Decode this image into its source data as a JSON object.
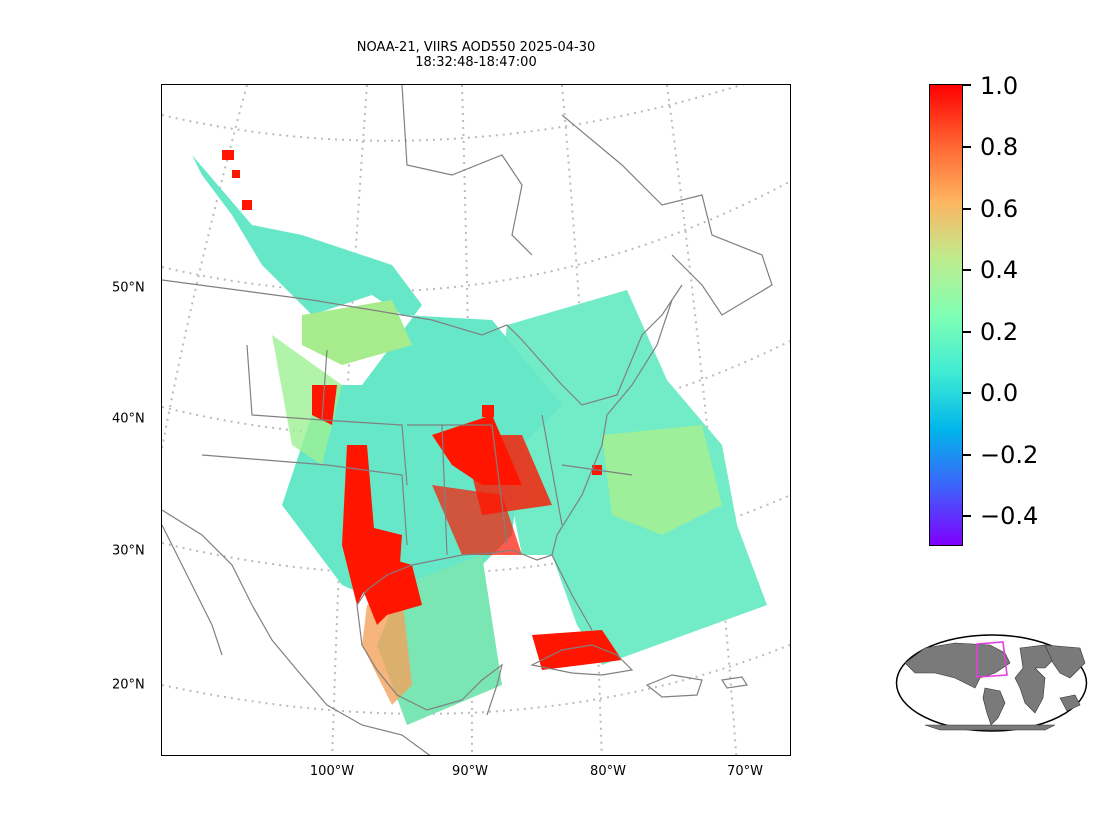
{
  "title": {
    "line1": "NOAA-21, VIIRS AOD550 2025-04-30",
    "line2": "18:32:48-18:47:00"
  },
  "map": {
    "lat_labels": [
      "50°N",
      "40°N",
      "30°N",
      "20°N"
    ],
    "lon_labels": [
      "100°W",
      "90°W",
      "80°W",
      "70°W"
    ],
    "data_colors": {
      "low": "#6a5acd",
      "clean": "#5ee3c0",
      "moderate": "#9cf08e",
      "high": "#f4a25c",
      "very_high": "#ff1500"
    },
    "coastline_color": "#808080",
    "graticule_color": "#bbbbbb"
  },
  "colorbar": {
    "ticks": [
      "1.0",
      "0.8",
      "0.6",
      "0.4",
      "0.2",
      "0.0",
      "−0.2",
      "−0.4"
    ],
    "min": -0.5,
    "max": 1.0,
    "colors": [
      "#7f00ff",
      "#3f61fa",
      "#00b5eb",
      "#40ecd4",
      "#80ffb4",
      "#c0eb8d",
      "#ffb360",
      "#ff6130",
      "#ff0000"
    ]
  },
  "inset": {
    "region_outline_color": "#e040e0"
  }
}
